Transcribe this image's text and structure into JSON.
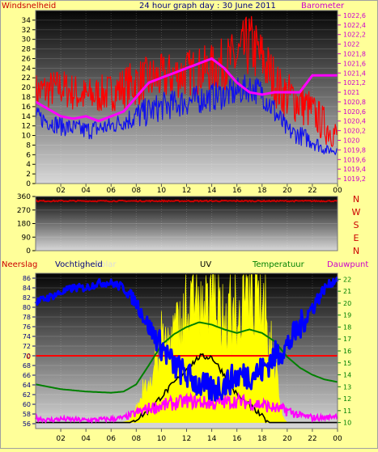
{
  "colors": {
    "background": "#ffff99",
    "wind": "#ff0000",
    "gust": "#1010ee",
    "barometer": "#ff00ff",
    "temperature": "#008000",
    "humidity": "#0000ff",
    "solar": "#ffff00",
    "uv": "#000000",
    "dewpoint": "#ff00ff",
    "winddir": "#cc0000",
    "labels_magenta": "#cc00cc",
    "labels_blue": "#000080",
    "labels_green": "#008000",
    "labels_red": "#cc0000"
  },
  "header": {
    "title": "24 hour graph day : 30 June 2011",
    "left_label": "Windsnelheid",
    "right_label": "Barometer"
  },
  "panel3_labels": {
    "neerslag": "Neerslag",
    "vochtigheid": "Vochtigheid",
    "solar": "Solar",
    "uv": "UV",
    "temperatuur": "Temperatuur",
    "dauwpunt": "Dauwpunt"
  },
  "chart_data": [
    {
      "type": "line",
      "title": "24 hour graph day : 30 June 2011",
      "x_ticks": [
        "02",
        "04",
        "06",
        "08",
        "10",
        "12",
        "14",
        "16",
        "18",
        "20",
        "22",
        "00"
      ],
      "ylim_left": [
        0,
        36
      ],
      "yticks_left": [
        0,
        2,
        4,
        6,
        8,
        10,
        12,
        14,
        16,
        18,
        20,
        22,
        24,
        26,
        28,
        30,
        32,
        34
      ],
      "ylabel_left": "Windsnelheid",
      "ylim_right": [
        1019.1,
        1022.7
      ],
      "yticks_right": [
        "1019,2",
        "1019,4",
        "1019,6",
        "1019,8",
        "1020",
        "1020,2",
        "1020,4",
        "1020,6",
        "1020,8",
        "1021",
        "1021,2",
        "1021,4",
        "1021,6",
        "1021,8",
        "1022",
        "1022,2",
        "1022,4",
        "1022,6"
      ],
      "ylabel_right": "Barometer",
      "series": [
        {
          "axis": "left",
          "color": "#ff0000",
          "style": "noisy",
          "x": [
            0,
            2,
            4,
            6,
            8,
            10,
            12,
            14,
            16,
            17,
            18,
            19.5,
            21,
            22,
            23,
            24
          ],
          "values": [
            19,
            20,
            18,
            19,
            21,
            22,
            23,
            24,
            26,
            29,
            26,
            19,
            17,
            15,
            12,
            10
          ],
          "jitter": [
            4,
            4,
            4,
            4,
            5,
            5,
            5,
            5,
            6,
            7,
            6,
            5,
            5,
            4,
            4,
            3
          ]
        },
        {
          "axis": "left",
          "color": "#1010ee",
          "style": "noisy",
          "x": [
            0,
            1,
            2,
            4,
            6,
            7,
            8,
            10,
            12,
            14,
            16,
            17,
            18,
            19,
            20,
            21,
            22,
            23,
            24
          ],
          "values": [
            14,
            13,
            12,
            11,
            12,
            13,
            14,
            16,
            17,
            18,
            19,
            20,
            19,
            15,
            11,
            10,
            9,
            7,
            7
          ],
          "jitter": [
            2,
            2,
            2,
            2,
            2,
            2,
            3,
            3,
            3,
            3,
            3,
            3,
            3,
            3,
            2,
            2,
            2,
            1,
            1
          ]
        },
        {
          "axis": "right",
          "color": "#ff00ff",
          "style": "smooth",
          "x": [
            0,
            1,
            2,
            3,
            4,
            5,
            6,
            7,
            8,
            9,
            10,
            11,
            12,
            13,
            14,
            15,
            16,
            17,
            18,
            19,
            20,
            21,
            22,
            23,
            24
          ],
          "values": [
            1020.8,
            1020.65,
            1020.5,
            1020.45,
            1020.5,
            1020.4,
            1020.5,
            1020.6,
            1020.9,
            1021.2,
            1021.3,
            1021.4,
            1021.5,
            1021.6,
            1021.7,
            1021.5,
            1021.2,
            1021.0,
            1020.95,
            1021.0,
            1021.0,
            1021.0,
            1021.35,
            1021.35,
            1021.35
          ]
        }
      ]
    },
    {
      "type": "line",
      "x_ticks": [
        "02",
        "04",
        "06",
        "08",
        "10",
        "12",
        "14",
        "16",
        "18",
        "20",
        "22",
        "00"
      ],
      "ylim": [
        0,
        360
      ],
      "yticks": [
        0,
        90,
        180,
        270,
        360
      ],
      "compass": [
        "N",
        "W",
        "S",
        "E",
        "N"
      ],
      "series": [
        {
          "name": "winddir",
          "color": "#cc0000",
          "x": [
            0,
            24
          ],
          "values": [
            330,
            330
          ],
          "jitter": 8
        }
      ]
    },
    {
      "type": "line",
      "x_ticks": [
        "02",
        "04",
        "06",
        "08",
        "10",
        "12",
        "14",
        "16",
        "18",
        "20",
        "22",
        "00"
      ],
      "ylim_left": [
        55,
        87
      ],
      "yticks_left": [
        56,
        58,
        60,
        62,
        64,
        66,
        68,
        70,
        72,
        74,
        76,
        78,
        80,
        82,
        84,
        86
      ],
      "ylim_right": [
        9.5,
        22.5
      ],
      "yticks_right": [
        10,
        11,
        12,
        13,
        14,
        15,
        16,
        17,
        18,
        19,
        20,
        21,
        22
      ],
      "rain_label": "0",
      "rain_value": 0,
      "series": [
        {
          "name": "Vochtigheid",
          "axis": "left",
          "color": "#0000ff",
          "style": "noisy",
          "x": [
            0,
            1,
            2,
            3,
            4,
            5,
            6,
            7,
            8,
            9,
            10,
            11,
            12,
            13,
            14,
            15,
            16,
            17,
            18,
            19,
            20,
            21,
            22,
            23,
            24
          ],
          "values": [
            81,
            82,
            83,
            84,
            84,
            85,
            85,
            84,
            81,
            76,
            72,
            68,
            66,
            64,
            63,
            64,
            66,
            66,
            67,
            70,
            72,
            76,
            80,
            84,
            86
          ],
          "jitter": [
            0.8,
            0.8,
            0.8,
            0.8,
            0.8,
            0.8,
            0.8,
            1,
            1.5,
            2,
            3,
            3,
            3,
            3,
            3,
            3,
            3,
            3,
            3,
            3,
            3,
            3,
            2,
            1,
            0.8
          ]
        },
        {
          "name": "Temperatuur",
          "axis": "right",
          "color": "#008000",
          "style": "smooth",
          "x": [
            0,
            2,
            4,
            6,
            7,
            8,
            9,
            10,
            11,
            12,
            13,
            14,
            15,
            16,
            17,
            18,
            19,
            20,
            21,
            22,
            23,
            24
          ],
          "values": [
            13.2,
            12.8,
            12.6,
            12.5,
            12.6,
            13.2,
            14.8,
            16.5,
            17.4,
            18,
            18.4,
            18.2,
            17.8,
            17.5,
            17.8,
            17.5,
            16.8,
            15.5,
            14.6,
            14,
            13.6,
            13.4
          ]
        },
        {
          "name": "Dauwpunt",
          "axis": "right",
          "color": "#ff00ff",
          "style": "noisy",
          "x": [
            0,
            1,
            2,
            4,
            6,
            7,
            8,
            9,
            10,
            12,
            14,
            16,
            18,
            19,
            20,
            21,
            22,
            23,
            24
          ],
          "values": [
            10.4,
            10.2,
            10.3,
            10.2,
            10.3,
            10.4,
            10.8,
            11.2,
            11.4,
            11.8,
            11.6,
            11.8,
            11.5,
            11.2,
            11,
            10.6,
            10.4,
            10.4,
            10.6
          ],
          "jitter": [
            0.2,
            0.2,
            0.2,
            0.2,
            0.2,
            0.2,
            0.4,
            0.5,
            0.6,
            0.6,
            0.6,
            0.6,
            0.6,
            0.5,
            0.5,
            0.3,
            0.3,
            0.2,
            0.2
          ]
        },
        {
          "name": "Solar",
          "axis": "right",
          "color": "#ffff00",
          "style": "area",
          "x": [
            0,
            6.8,
            7.5,
            8,
            9,
            10,
            11,
            12,
            13,
            14,
            15,
            16,
            17,
            18,
            19,
            19.6,
            20,
            24
          ],
          "values": [
            10,
            10,
            10.2,
            11,
            13.5,
            16,
            17.5,
            19,
            19.5,
            19.2,
            18.5,
            18,
            20.5,
            19.5,
            14,
            10.5,
            10,
            10
          ]
        },
        {
          "name": "UV",
          "axis": "right",
          "color": "#000000",
          "style": "line",
          "x": [
            0,
            7.5,
            8,
            9,
            10,
            11,
            12,
            13,
            14,
            15,
            16,
            17,
            18,
            18.6,
            24
          ],
          "values": [
            10,
            10,
            10.3,
            11,
            12.2,
            13.3,
            14.5,
            15.5,
            15.5,
            14,
            12.3,
            11.4,
            10.5,
            10,
            10
          ]
        }
      ]
    }
  ]
}
